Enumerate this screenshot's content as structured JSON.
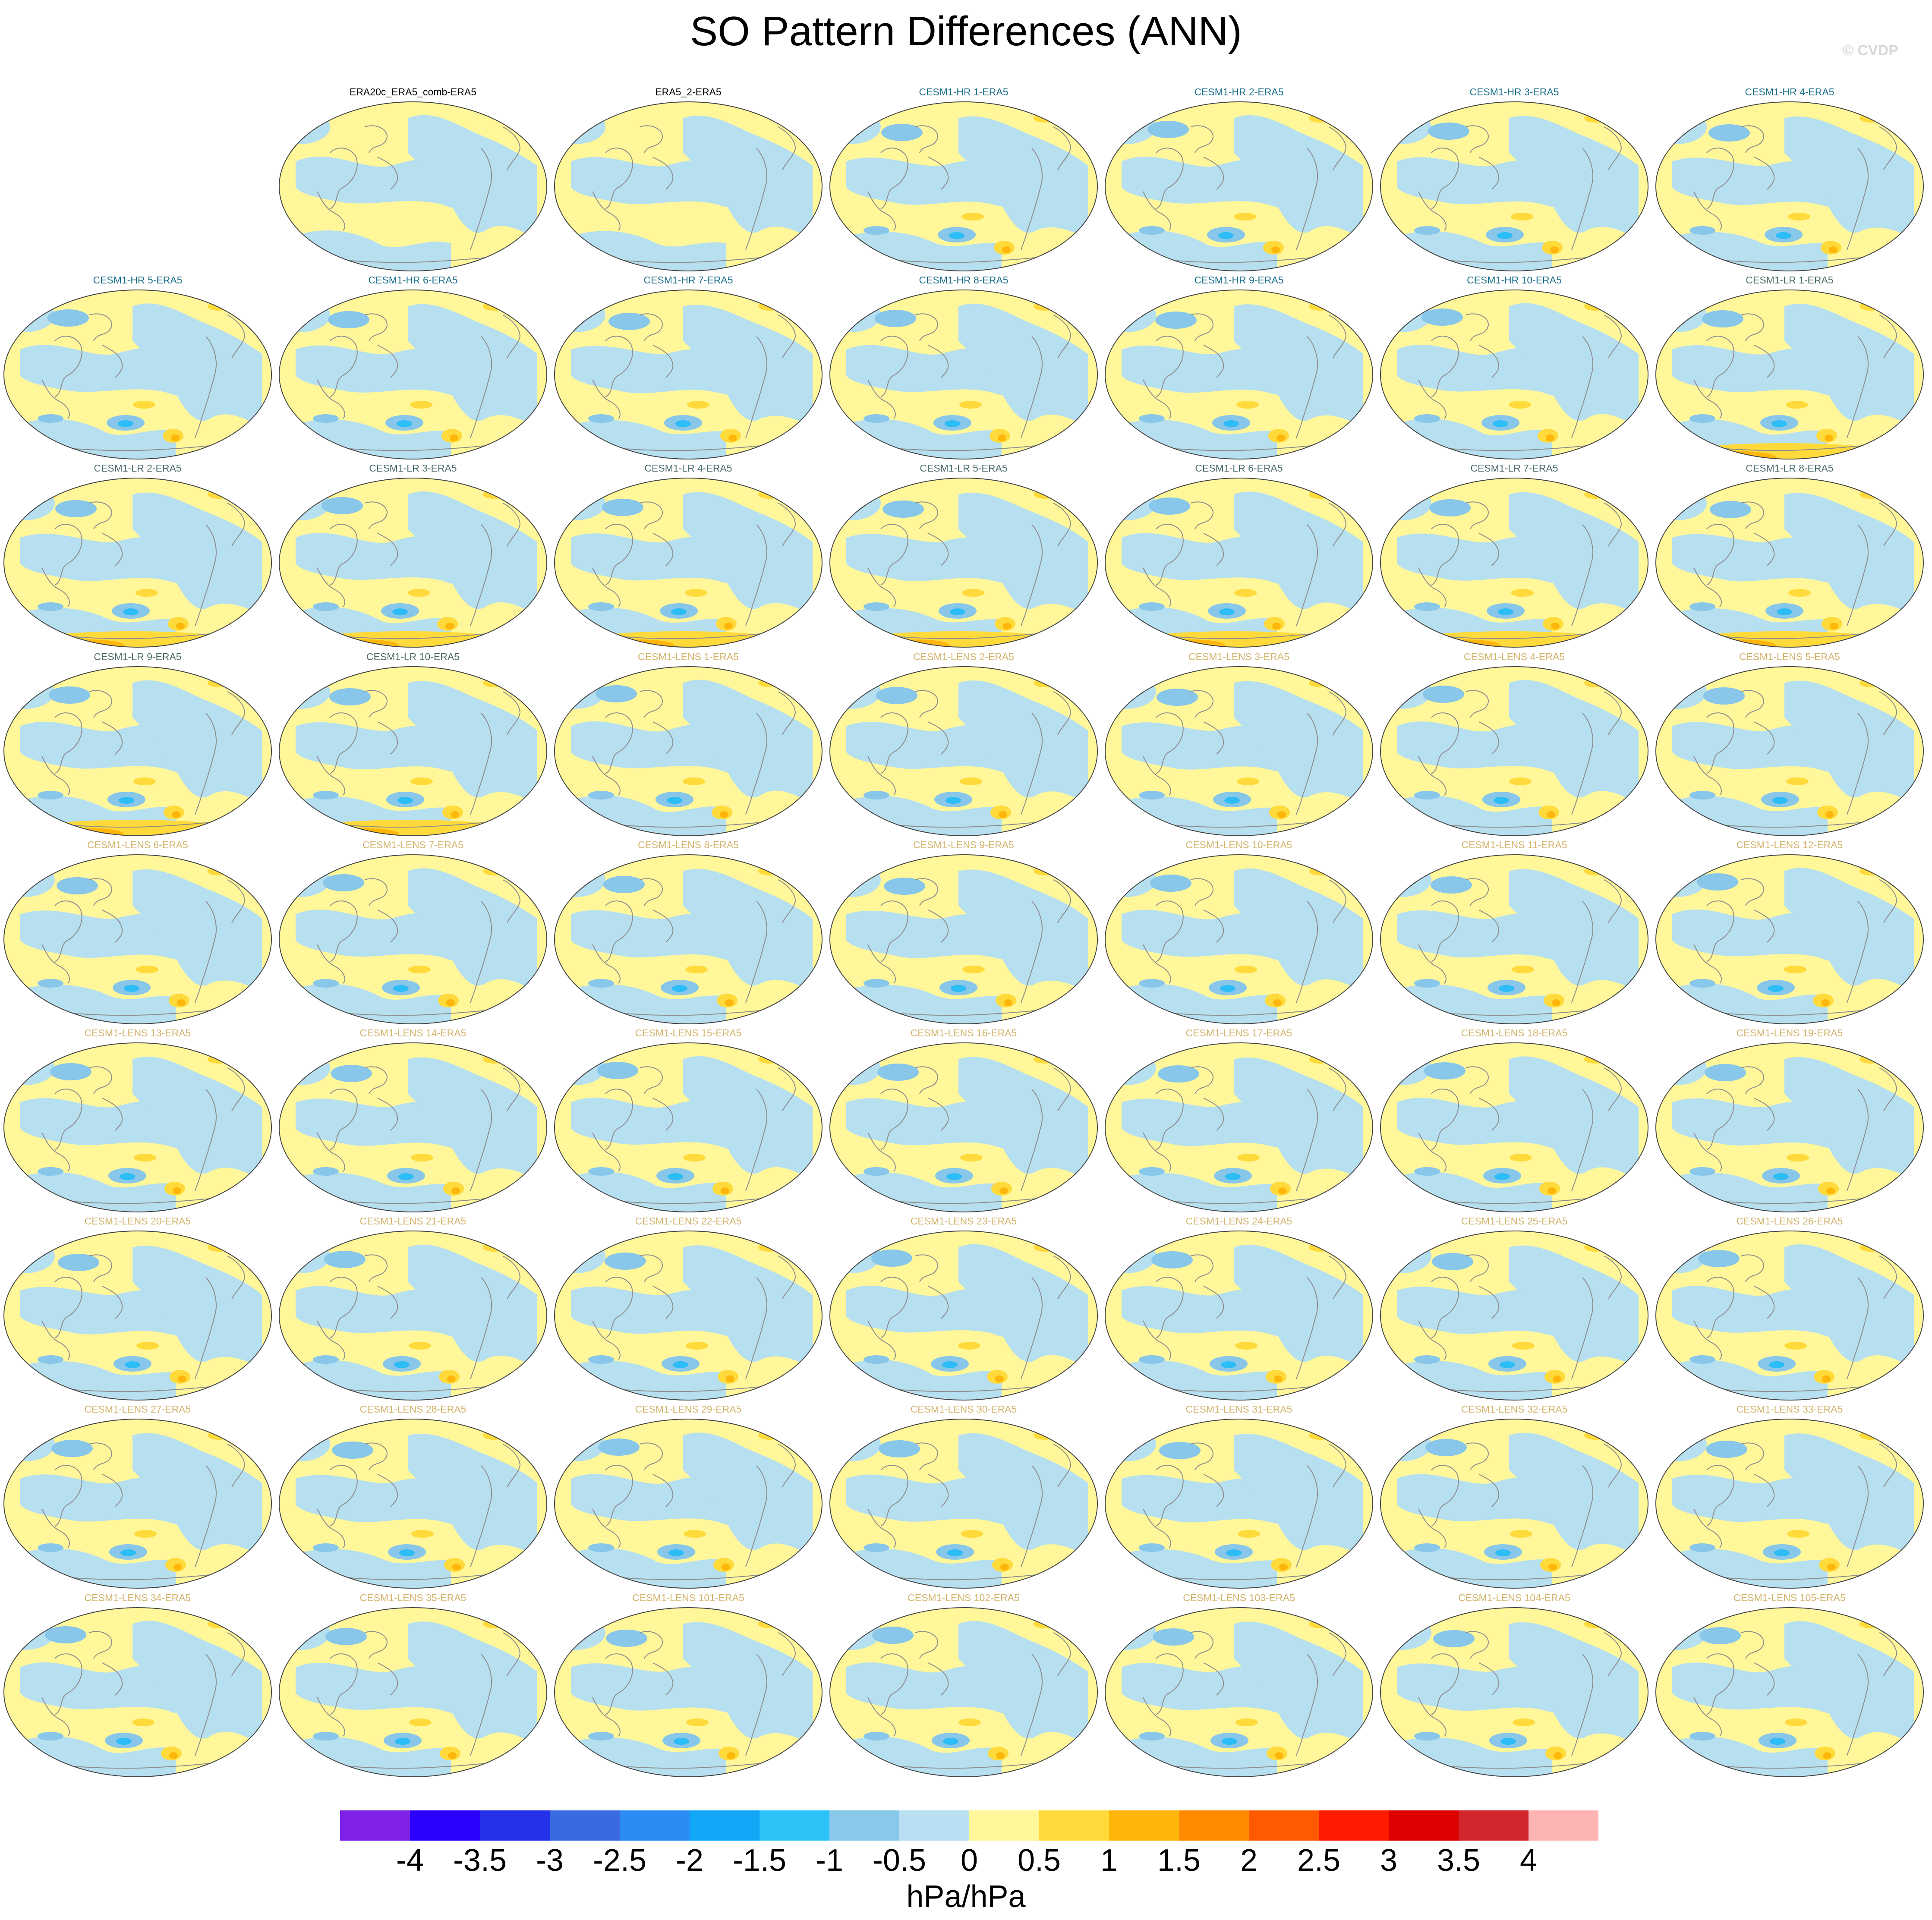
{
  "title": "SO Pattern Differences (ANN)",
  "watermark": "© CVDP",
  "title_colors": {
    "observations": "#000000",
    "CESM1-HR": "#1a6f8a",
    "CESM1-LR": "#4a6a6a",
    "CESM1-LENS": "#d2b36a"
  },
  "map_colors": {
    "ocean_light_blue": "#b6dff0",
    "light_yellow": "#fff79a",
    "yellow": "#ffda3a",
    "orange": "#ffb60a",
    "medium_blue": "#88c6ea",
    "bright_blue": "#2cbcf6",
    "coastline": "#8c8c8c"
  },
  "panels": [
    {
      "label": "ERA20c_ERA5_comb-ERA5",
      "group": "observations",
      "variant": 0
    },
    {
      "label": "ERA5_2-ERA5",
      "group": "observations",
      "variant": 0
    },
    {
      "label": "CESM1-HR 1-ERA5",
      "group": "CESM1-HR",
      "variant": 1
    },
    {
      "label": "CESM1-HR 2-ERA5",
      "group": "CESM1-HR",
      "variant": 1
    },
    {
      "label": "CESM1-HR 3-ERA5",
      "group": "CESM1-HR",
      "variant": 1
    },
    {
      "label": "CESM1-HR 4-ERA5",
      "group": "CESM1-HR",
      "variant": 1
    },
    {
      "label": "CESM1-HR 5-ERA5",
      "group": "CESM1-HR",
      "variant": 1
    },
    {
      "label": "CESM1-HR 6-ERA5",
      "group": "CESM1-HR",
      "variant": 1
    },
    {
      "label": "CESM1-HR 7-ERA5",
      "group": "CESM1-HR",
      "variant": 1
    },
    {
      "label": "CESM1-HR 8-ERA5",
      "group": "CESM1-HR",
      "variant": 1
    },
    {
      "label": "CESM1-HR 9-ERA5",
      "group": "CESM1-HR",
      "variant": 1
    },
    {
      "label": "CESM1-HR 10-ERA5",
      "group": "CESM1-HR",
      "variant": 1
    },
    {
      "label": "CESM1-LR 1-ERA5",
      "group": "CESM1-LR",
      "variant": 2
    },
    {
      "label": "CESM1-LR 2-ERA5",
      "group": "CESM1-LR",
      "variant": 2
    },
    {
      "label": "CESM1-LR 3-ERA5",
      "group": "CESM1-LR",
      "variant": 2
    },
    {
      "label": "CESM1-LR 4-ERA5",
      "group": "CESM1-LR",
      "variant": 2
    },
    {
      "label": "CESM1-LR 5-ERA5",
      "group": "CESM1-LR",
      "variant": 2
    },
    {
      "label": "CESM1-LR 6-ERA5",
      "group": "CESM1-LR",
      "variant": 2
    },
    {
      "label": "CESM1-LR 7-ERA5",
      "group": "CESM1-LR",
      "variant": 2
    },
    {
      "label": "CESM1-LR 8-ERA5",
      "group": "CESM1-LR",
      "variant": 2
    },
    {
      "label": "CESM1-LR 9-ERA5",
      "group": "CESM1-LR",
      "variant": 2
    },
    {
      "label": "CESM1-LR 10-ERA5",
      "group": "CESM1-LR",
      "variant": 2
    },
    {
      "label": "CESM1-LENS 1-ERA5",
      "group": "CESM1-LENS",
      "variant": 1
    },
    {
      "label": "CESM1-LENS 2-ERA5",
      "group": "CESM1-LENS",
      "variant": 1
    },
    {
      "label": "CESM1-LENS 3-ERA5",
      "group": "CESM1-LENS",
      "variant": 1
    },
    {
      "label": "CESM1-LENS 4-ERA5",
      "group": "CESM1-LENS",
      "variant": 1
    },
    {
      "label": "CESM1-LENS 5-ERA5",
      "group": "CESM1-LENS",
      "variant": 1
    },
    {
      "label": "CESM1-LENS 6-ERA5",
      "group": "CESM1-LENS",
      "variant": 1
    },
    {
      "label": "CESM1-LENS 7-ERA5",
      "group": "CESM1-LENS",
      "variant": 1
    },
    {
      "label": "CESM1-LENS 8-ERA5",
      "group": "CESM1-LENS",
      "variant": 1
    },
    {
      "label": "CESM1-LENS 9-ERA5",
      "group": "CESM1-LENS",
      "variant": 1
    },
    {
      "label": "CESM1-LENS 10-ERA5",
      "group": "CESM1-LENS",
      "variant": 1
    },
    {
      "label": "CESM1-LENS 11-ERA5",
      "group": "CESM1-LENS",
      "variant": 1
    },
    {
      "label": "CESM1-LENS 12-ERA5",
      "group": "CESM1-LENS",
      "variant": 1
    },
    {
      "label": "CESM1-LENS 13-ERA5",
      "group": "CESM1-LENS",
      "variant": 1
    },
    {
      "label": "CESM1-LENS 14-ERA5",
      "group": "CESM1-LENS",
      "variant": 1
    },
    {
      "label": "CESM1-LENS 15-ERA5",
      "group": "CESM1-LENS",
      "variant": 1
    },
    {
      "label": "CESM1-LENS 16-ERA5",
      "group": "CESM1-LENS",
      "variant": 1
    },
    {
      "label": "CESM1-LENS 17-ERA5",
      "group": "CESM1-LENS",
      "variant": 1
    },
    {
      "label": "CESM1-LENS 18-ERA5",
      "group": "CESM1-LENS",
      "variant": 1
    },
    {
      "label": "CESM1-LENS 19-ERA5",
      "group": "CESM1-LENS",
      "variant": 1
    },
    {
      "label": "CESM1-LENS 20-ERA5",
      "group": "CESM1-LENS",
      "variant": 1
    },
    {
      "label": "CESM1-LENS 21-ERA5",
      "group": "CESM1-LENS",
      "variant": 1
    },
    {
      "label": "CESM1-LENS 22-ERA5",
      "group": "CESM1-LENS",
      "variant": 1
    },
    {
      "label": "CESM1-LENS 23-ERA5",
      "group": "CESM1-LENS",
      "variant": 1
    },
    {
      "label": "CESM1-LENS 24-ERA5",
      "group": "CESM1-LENS",
      "variant": 1
    },
    {
      "label": "CESM1-LENS 25-ERA5",
      "group": "CESM1-LENS",
      "variant": 1
    },
    {
      "label": "CESM1-LENS 26-ERA5",
      "group": "CESM1-LENS",
      "variant": 1
    },
    {
      "label": "CESM1-LENS 27-ERA5",
      "group": "CESM1-LENS",
      "variant": 1
    },
    {
      "label": "CESM1-LENS 28-ERA5",
      "group": "CESM1-LENS",
      "variant": 1
    },
    {
      "label": "CESM1-LENS 29-ERA5",
      "group": "CESM1-LENS",
      "variant": 1
    },
    {
      "label": "CESM1-LENS 30-ERA5",
      "group": "CESM1-LENS",
      "variant": 1
    },
    {
      "label": "CESM1-LENS 31-ERA5",
      "group": "CESM1-LENS",
      "variant": 1
    },
    {
      "label": "CESM1-LENS 32-ERA5",
      "group": "CESM1-LENS",
      "variant": 1
    },
    {
      "label": "CESM1-LENS 33-ERA5",
      "group": "CESM1-LENS",
      "variant": 1
    },
    {
      "label": "CESM1-LENS 34-ERA5",
      "group": "CESM1-LENS",
      "variant": 1
    },
    {
      "label": "CESM1-LENS 35-ERA5",
      "group": "CESM1-LENS",
      "variant": 1
    },
    {
      "label": "CESM1-LENS 101-ERA5",
      "group": "CESM1-LENS",
      "variant": 1
    },
    {
      "label": "CESM1-LENS 102-ERA5",
      "group": "CESM1-LENS",
      "variant": 1
    },
    {
      "label": "CESM1-LENS 103-ERA5",
      "group": "CESM1-LENS",
      "variant": 1
    },
    {
      "label": "CESM1-LENS 104-ERA5",
      "group": "CESM1-LENS",
      "variant": 1
    },
    {
      "label": "CESM1-LENS 105-ERA5",
      "group": "CESM1-LENS",
      "variant": 1
    }
  ],
  "colorbar": {
    "colors": [
      "#7f22e6",
      "#2a00ff",
      "#2332e9",
      "#3a6ae0",
      "#2b8cf6",
      "#11a6f6",
      "#2cc2f7",
      "#88c8ea",
      "#b8e0f2",
      "#fff79a",
      "#ffda3a",
      "#ffb60a",
      "#ff8a00",
      "#ff5a00",
      "#ff1a00",
      "#dc0000",
      "#d2262c",
      "#ffb4b4"
    ],
    "tick_labels": [
      "-4",
      "-3.5",
      "-3",
      "-2.5",
      "-2",
      "-1.5",
      "-1",
      "-0.5",
      "0",
      "0.5",
      "1",
      "1.5",
      "2",
      "2.5",
      "3",
      "3.5",
      "4"
    ],
    "units": "hPa/hPa"
  }
}
